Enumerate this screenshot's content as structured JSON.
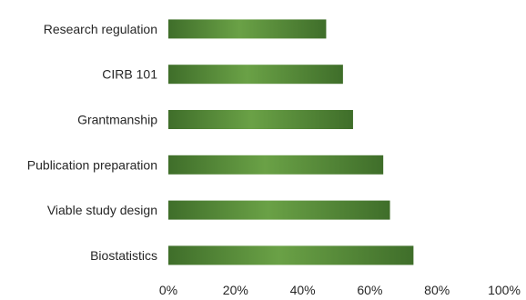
{
  "chart_data": {
    "type": "bar",
    "orientation": "horizontal",
    "categories": [
      "Research regulation",
      "CIRB 101",
      "Grantmanship",
      "Publication preparation",
      "Viable study design",
      "Biostatistics"
    ],
    "values": [
      47,
      52,
      55,
      64,
      66,
      73
    ],
    "value_unit": "%",
    "xlim": [
      0,
      100
    ],
    "xticks": [
      "0%",
      "20%",
      "40%",
      "60%",
      "80%",
      "100%"
    ],
    "title": "",
    "xlabel": "",
    "ylabel": "",
    "grid": false,
    "legend": "none",
    "bar_color": "#5a8f3c",
    "bar_color_dark": "#3f6e2a"
  }
}
